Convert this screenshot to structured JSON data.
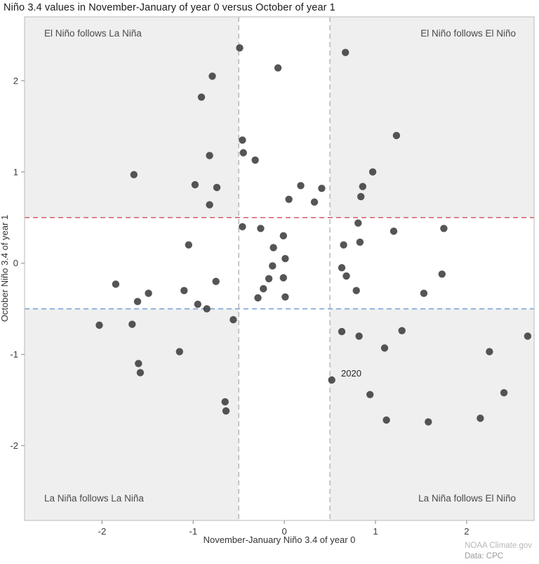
{
  "title": "Niño 3.4 values in November-January of year 0 versus October of year 1",
  "footer": {
    "credit": "NOAA Climate.gov",
    "source": "Data: CPC"
  },
  "chart_data": {
    "type": "scatter",
    "title": "Niño 3.4 values in November-January of year 0 versus October of year 1",
    "xlabel": "November-January Niño 3.4 of year 0",
    "ylabel": "October Niño 3.4 of year 1",
    "xlim": [
      -2.85,
      2.74
    ],
    "ylim": [
      -2.82,
      2.7
    ],
    "xticks": [
      -2,
      -1,
      0,
      1,
      2
    ],
    "yticks": [
      -2,
      -1,
      0,
      1,
      2
    ],
    "grid": false,
    "thresholds": {
      "el_nino": 0.5,
      "la_nina": -0.5
    },
    "quadrant_labels": {
      "top_left": "El Niño follows La Niña",
      "top_right": "El Niño follows El Niño",
      "bottom_left": "La Niña follows La Niña",
      "bottom_right": "La Niña follows El Niño"
    },
    "annotation": {
      "label": "2020",
      "x": 0.52,
      "y": -1.28
    },
    "colors": {
      "point": "#3d3d3d",
      "el_nino_line": "#d05c66",
      "la_nina_line": "#7fa3dc",
      "threshold_vline": "#b3b3b3",
      "quadrant_bg": "#efefef",
      "plot_border": "#c4c4c4",
      "tick": "#999999"
    },
    "points": [
      [
        -0.49,
        2.36
      ],
      [
        -0.07,
        2.14
      ],
      [
        0.67,
        2.31
      ],
      [
        -0.79,
        2.05
      ],
      [
        -0.91,
        1.82
      ],
      [
        1.23,
        1.4
      ],
      [
        -0.46,
        1.35
      ],
      [
        -0.45,
        1.21
      ],
      [
        -0.32,
        1.13
      ],
      [
        -0.82,
        1.18
      ],
      [
        -1.65,
        0.97
      ],
      [
        0.97,
        1.0
      ],
      [
        0.86,
        0.84
      ],
      [
        -0.98,
        0.86
      ],
      [
        -0.74,
        0.83
      ],
      [
        0.18,
        0.85
      ],
      [
        0.41,
        0.82
      ],
      [
        0.84,
        0.73
      ],
      [
        -0.82,
        0.64
      ],
      [
        0.05,
        0.7
      ],
      [
        0.33,
        0.67
      ],
      [
        -0.46,
        0.4
      ],
      [
        -0.26,
        0.38
      ],
      [
        1.75,
        0.38
      ],
      [
        1.2,
        0.35
      ],
      [
        -0.01,
        0.3
      ],
      [
        0.81,
        0.44
      ],
      [
        0.65,
        0.2
      ],
      [
        0.83,
        0.23
      ],
      [
        -1.05,
        0.2
      ],
      [
        -0.12,
        0.17
      ],
      [
        0.01,
        0.05
      ],
      [
        0.63,
        -0.05
      ],
      [
        -0.13,
        -0.03
      ],
      [
        0.68,
        -0.14
      ],
      [
        -0.01,
        -0.16
      ],
      [
        -0.17,
        -0.17
      ],
      [
        1.73,
        -0.12
      ],
      [
        -1.85,
        -0.23
      ],
      [
        -0.75,
        -0.2
      ],
      [
        -0.23,
        -0.28
      ],
      [
        0.79,
        -0.3
      ],
      [
        -1.49,
        -0.33
      ],
      [
        -1.1,
        -0.3
      ],
      [
        -0.29,
        -0.38
      ],
      [
        0.01,
        -0.37
      ],
      [
        1.53,
        -0.33
      ],
      [
        -1.61,
        -0.42
      ],
      [
        -0.95,
        -0.45
      ],
      [
        -0.85,
        -0.5
      ],
      [
        -0.56,
        -0.62
      ],
      [
        -2.03,
        -0.68
      ],
      [
        -1.67,
        -0.67
      ],
      [
        0.63,
        -0.75
      ],
      [
        0.82,
        -0.8
      ],
      [
        1.29,
        -0.74
      ],
      [
        2.67,
        -0.8
      ],
      [
        1.1,
        -0.93
      ],
      [
        2.25,
        -0.97
      ],
      [
        -1.15,
        -0.97
      ],
      [
        -1.6,
        -1.1
      ],
      [
        -1.58,
        -1.2
      ],
      [
        0.52,
        -1.28
      ],
      [
        2.41,
        -1.42
      ],
      [
        0.94,
        -1.44
      ],
      [
        -0.65,
        -1.52
      ],
      [
        -0.64,
        -1.62
      ],
      [
        1.12,
        -1.72
      ],
      [
        1.58,
        -1.74
      ],
      [
        2.15,
        -1.7
      ]
    ]
  }
}
